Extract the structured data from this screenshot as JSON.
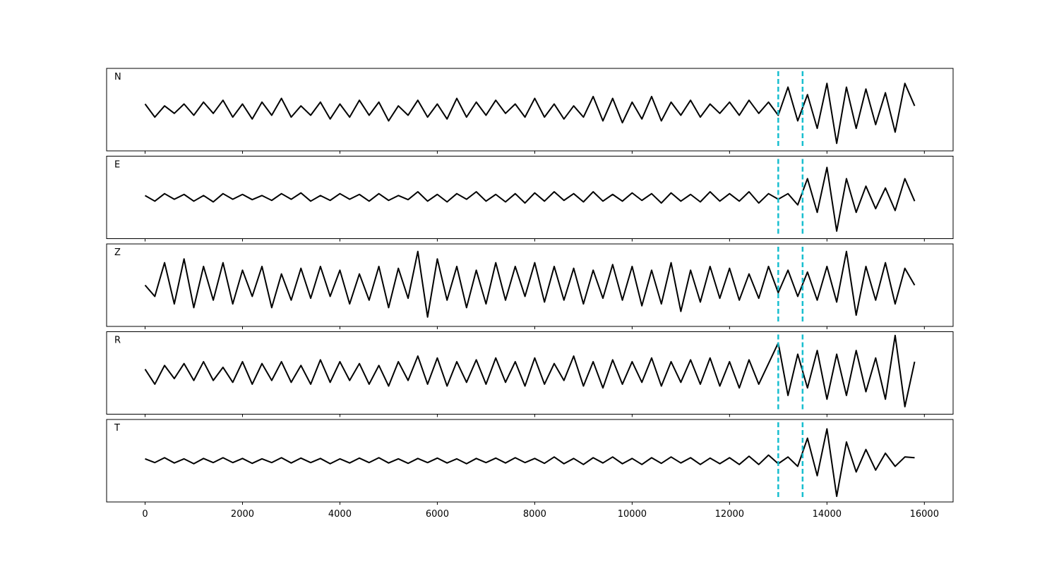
{
  "chart_data": {
    "type": "line",
    "panels": true,
    "line_color": "#000000",
    "x": [
      0,
      200,
      400,
      600,
      800,
      1000,
      1200,
      1400,
      1600,
      1800,
      2000,
      2200,
      2400,
      2600,
      2800,
      3000,
      3200,
      3400,
      3600,
      3800,
      4000,
      4200,
      4400,
      4600,
      4800,
      5000,
      5200,
      5400,
      5600,
      5800,
      6000,
      6200,
      6400,
      6600,
      6800,
      7000,
      7200,
      7400,
      7600,
      7800,
      8000,
      8200,
      8400,
      8600,
      8800,
      9000,
      9200,
      9400,
      9600,
      9800,
      10000,
      10200,
      10400,
      10600,
      10800,
      11000,
      11200,
      11400,
      11600,
      11800,
      12000,
      12200,
      12400,
      12600,
      12800,
      13000,
      13200,
      13400,
      13600,
      13800,
      14000,
      14200,
      14400,
      14600,
      14800,
      15000,
      15200,
      15400,
      15600,
      15800
    ],
    "xlim": [
      -790,
      16590
    ],
    "xticks": [
      0,
      2000,
      4000,
      6000,
      8000,
      10000,
      12000,
      14000,
      16000
    ],
    "ylim": [
      -1.1,
      1.1
    ],
    "vlines": [
      13000,
      13500
    ],
    "vline_color": "#17becf",
    "series": [
      {
        "name": "N",
        "values": [
          0.15,
          -0.2,
          0.1,
          -0.1,
          0.15,
          -0.15,
          0.2,
          -0.1,
          0.25,
          -0.2,
          0.15,
          -0.25,
          0.2,
          -0.15,
          0.3,
          -0.2,
          0.1,
          -0.15,
          0.2,
          -0.25,
          0.15,
          -0.2,
          0.25,
          -0.15,
          0.2,
          -0.3,
          0.1,
          -0.15,
          0.25,
          -0.2,
          0.15,
          -0.25,
          0.3,
          -0.2,
          0.2,
          -0.15,
          0.25,
          -0.1,
          0.15,
          -0.2,
          0.3,
          -0.2,
          0.15,
          -0.25,
          0.1,
          -0.2,
          0.35,
          -0.3,
          0.3,
          -0.35,
          0.2,
          -0.25,
          0.35,
          -0.3,
          0.2,
          -0.15,
          0.25,
          -0.2,
          0.15,
          -0.1,
          0.2,
          -0.15,
          0.25,
          -0.1,
          0.2,
          -0.15,
          0.6,
          -0.3,
          0.4,
          -0.5,
          0.7,
          -0.9,
          0.6,
          -0.5,
          0.55,
          -0.4,
          0.45,
          -0.6,
          0.7,
          0.1
        ]
      },
      {
        "name": "E",
        "values": [
          0.05,
          -0.1,
          0.1,
          -0.05,
          0.08,
          -0.1,
          0.05,
          -0.12,
          0.1,
          -0.05,
          0.08,
          -0.06,
          0.05,
          -0.08,
          0.1,
          -0.05,
          0.12,
          -0.1,
          0.05,
          -0.08,
          0.1,
          -0.05,
          0.08,
          -0.1,
          0.1,
          -0.08,
          0.05,
          -0.06,
          0.15,
          -0.1,
          0.08,
          -0.12,
          0.1,
          -0.05,
          0.15,
          -0.1,
          0.08,
          -0.12,
          0.1,
          -0.15,
          0.12,
          -0.1,
          0.15,
          -0.08,
          0.1,
          -0.12,
          0.15,
          -0.1,
          0.08,
          -0.1,
          0.12,
          -0.08,
          0.1,
          -0.15,
          0.12,
          -0.1,
          0.08,
          -0.12,
          0.15,
          -0.1,
          0.1,
          -0.1,
          0.15,
          -0.15,
          0.1,
          -0.05,
          0.1,
          -0.2,
          0.5,
          -0.4,
          0.8,
          -0.9,
          0.5,
          -0.4,
          0.3,
          -0.3,
          0.25,
          -0.35,
          0.5,
          -0.1
        ]
      },
      {
        "name": "Z",
        "values": [
          0.0,
          -0.3,
          0.6,
          -0.5,
          0.7,
          -0.6,
          0.5,
          -0.4,
          0.6,
          -0.5,
          0.4,
          -0.3,
          0.5,
          -0.6,
          0.3,
          -0.4,
          0.45,
          -0.35,
          0.5,
          -0.3,
          0.4,
          -0.5,
          0.3,
          -0.4,
          0.5,
          -0.6,
          0.45,
          -0.35,
          0.9,
          -0.85,
          0.7,
          -0.4,
          0.5,
          -0.6,
          0.4,
          -0.5,
          0.6,
          -0.4,
          0.5,
          -0.3,
          0.6,
          -0.45,
          0.5,
          -0.4,
          0.45,
          -0.5,
          0.4,
          -0.35,
          0.55,
          -0.4,
          0.5,
          -0.55,
          0.4,
          -0.5,
          0.6,
          -0.7,
          0.4,
          -0.45,
          0.5,
          -0.35,
          0.45,
          -0.4,
          0.3,
          -0.35,
          0.5,
          -0.2,
          0.4,
          -0.3,
          0.35,
          -0.4,
          0.5,
          -0.45,
          0.9,
          -0.8,
          0.5,
          -0.4,
          0.6,
          -0.5,
          0.45,
          0.0
        ]
      },
      {
        "name": "R",
        "values": [
          0.1,
          -0.3,
          0.2,
          -0.15,
          0.25,
          -0.2,
          0.3,
          -0.2,
          0.15,
          -0.25,
          0.3,
          -0.3,
          0.25,
          -0.2,
          0.3,
          -0.25,
          0.2,
          -0.3,
          0.35,
          -0.25,
          0.3,
          -0.2,
          0.25,
          -0.3,
          0.2,
          -0.35,
          0.3,
          -0.2,
          0.45,
          -0.3,
          0.4,
          -0.35,
          0.3,
          -0.25,
          0.35,
          -0.3,
          0.4,
          -0.25,
          0.3,
          -0.35,
          0.4,
          -0.3,
          0.25,
          -0.2,
          0.45,
          -0.35,
          0.3,
          -0.4,
          0.35,
          -0.3,
          0.3,
          -0.25,
          0.4,
          -0.35,
          0.3,
          -0.25,
          0.35,
          -0.3,
          0.4,
          -0.35,
          0.3,
          -0.4,
          0.35,
          -0.3,
          0.25,
          0.8,
          -0.6,
          0.5,
          -0.4,
          0.6,
          -0.7,
          0.5,
          -0.6,
          0.6,
          -0.5,
          0.4,
          -0.7,
          1.0,
          -0.9,
          0.3
        ]
      },
      {
        "name": "T",
        "values": [
          0.05,
          -0.05,
          0.08,
          -0.06,
          0.05,
          -0.08,
          0.06,
          -0.05,
          0.08,
          -0.05,
          0.06,
          -0.07,
          0.05,
          -0.05,
          0.08,
          -0.06,
          0.07,
          -0.05,
          0.06,
          -0.08,
          0.05,
          -0.06,
          0.07,
          -0.05,
          0.08,
          -0.06,
          0.05,
          -0.07,
          0.06,
          -0.05,
          0.07,
          -0.06,
          0.05,
          -0.08,
          0.06,
          -0.05,
          0.07,
          -0.06,
          0.08,
          -0.05,
          0.06,
          -0.07,
          0.1,
          -0.08,
          0.06,
          -0.1,
          0.08,
          -0.06,
          0.1,
          -0.08,
          0.06,
          -0.1,
          0.08,
          -0.07,
          0.1,
          -0.06,
          0.08,
          -0.1,
          0.07,
          -0.08,
          0.08,
          -0.1,
          0.12,
          -0.1,
          0.15,
          -0.08,
          0.1,
          -0.15,
          0.6,
          -0.4,
          0.85,
          -0.95,
          0.5,
          -0.3,
          0.3,
          -0.25,
          0.2,
          -0.15,
          0.1,
          0.08
        ]
      }
    ]
  }
}
